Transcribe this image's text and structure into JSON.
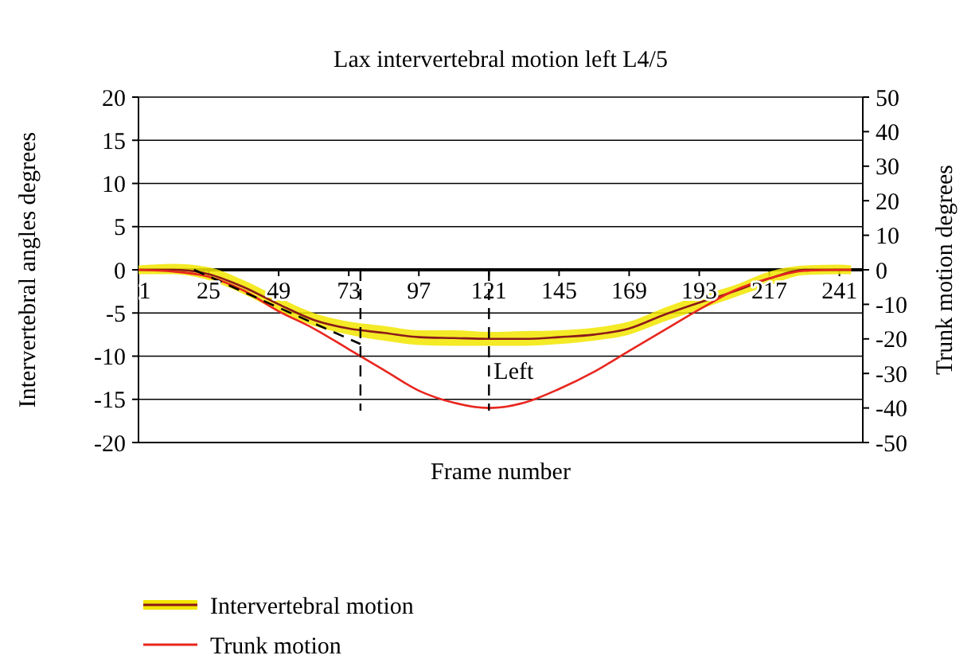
{
  "chart_data": {
    "type": "line",
    "title": "Lax intervertebral motion left L4/5",
    "xlabel": "Frame number",
    "ylabel": "Intervertebral angles degrees",
    "y2label": "Trunk motion degrees",
    "xlim": [
      1,
      249
    ],
    "xticks": [
      1,
      25,
      49,
      73,
      97,
      121,
      145,
      169,
      193,
      217,
      241
    ],
    "ylim": [
      -20,
      20
    ],
    "yticks": [
      -20,
      -15,
      -10,
      -5,
      0,
      5,
      10,
      15,
      20
    ],
    "y2lim": [
      -50,
      50
    ],
    "y2ticks": [
      -50,
      -40,
      -30,
      -20,
      -10,
      0,
      10,
      20,
      30,
      40,
      50
    ],
    "grid": "y",
    "legend": "bottom",
    "line_style": "solid",
    "series": [
      {
        "name": "Intervertebral motion",
        "color": "#8b1a1a",
        "x": [
          1,
          13,
          25,
          37,
          49,
          61,
          73,
          85,
          97,
          109,
          121,
          133,
          145,
          157,
          169,
          181,
          193,
          205,
          217,
          229,
          241,
          245
        ],
        "values": [
          0,
          0,
          -0.5,
          -2,
          -4,
          -5.8,
          -6.8,
          -7.3,
          -7.8,
          -7.9,
          -8,
          -8,
          -7.8,
          -7.5,
          -6.8,
          -5.2,
          -3.8,
          -2.5,
          -1,
          0,
          0,
          0
        ],
        "lower": [
          -0.5,
          -0.5,
          -1.2,
          -2.8,
          -4.8,
          -6.5,
          -7.5,
          -8.2,
          -8.7,
          -8.8,
          -8.8,
          -8.8,
          -8.6,
          -8.2,
          -7.5,
          -6,
          -4.6,
          -3.2,
          -1.8,
          -0.6,
          -0.5,
          -0.5
        ],
        "upper": [
          0.5,
          0.7,
          0.3,
          -1.2,
          -3.2,
          -5,
          -6,
          -6.5,
          -7,
          -7,
          -7.2,
          -7.1,
          -7,
          -6.7,
          -6,
          -4.4,
          -3,
          -1.8,
          -0.2,
          0.5,
          0.6,
          0.5
        ]
      },
      {
        "color": "#e8261f",
        "axis": "y2",
        "x": [
          1,
          13,
          25,
          37,
          49,
          61,
          73,
          85,
          97,
          109,
          121,
          133,
          145,
          157,
          169,
          181,
          193,
          205,
          217,
          229,
          241,
          245
        ],
        "values": [
          0,
          -0.5,
          -2,
          -6,
          -12,
          -17,
          -23,
          -29,
          -35,
          -38.5,
          -40,
          -38.5,
          -34.5,
          -29.5,
          -23.5,
          -17.5,
          -11.5,
          -6,
          -2.5,
          -0.3,
          0,
          0
        ],
        "name": "Trunk motion"
      },
      {
        "color": "#000000",
        "line_style": "dashed",
        "x": [
          20,
          77
        ],
        "values": [
          0,
          -8.6
        ]
      }
    ],
    "ref_lines": [
      {
        "axis": "x",
        "value": 77,
        "label": null,
        "line_style": "dashed",
        "color": "#000000"
      },
      {
        "axis": "x",
        "value": 121,
        "label": "Left",
        "line_style": "dashed",
        "color": "#000000"
      }
    ]
  }
}
